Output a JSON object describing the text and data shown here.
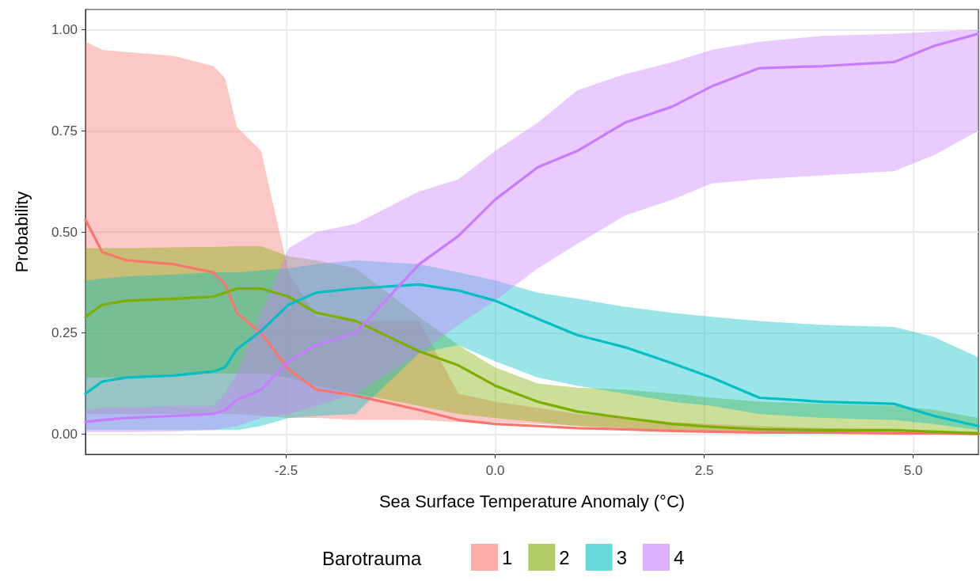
{
  "chart_data": {
    "type": "line",
    "xlabel": "Sea Surface Temperature Anomaly (°C)",
    "ylabel": "Probability",
    "legend_title": "Barotrauma",
    "legend": "bottom",
    "grid": true,
    "line_style": "solid",
    "marker": "none",
    "xlim": [
      -4.9,
      5.78
    ],
    "ylim": [
      -0.05,
      1.05
    ],
    "xticks": [
      -2.5,
      {
        "value": 0,
        "label": "0.0"
      },
      2.5,
      {
        "value": 5,
        "label": "5.0"
      }
    ],
    "yticks": [
      {
        "value": 0,
        "label": "0.00"
      },
      {
        "value": 0.25,
        "label": "0.25"
      },
      {
        "value": 0.5,
        "label": "0.50"
      },
      {
        "value": 0.75,
        "label": "0.75"
      },
      {
        "value": 1,
        "label": "1.00"
      }
    ],
    "x": [
      -4.9,
      -4.7,
      -4.41,
      -3.84,
      -3.37,
      -3.23,
      -3.09,
      -2.8,
      -2.47,
      -2.14,
      -1.67,
      -0.91,
      -0.44,
      0,
      0.51,
      0.98,
      1.55,
      2.12,
      2.59,
      3.16,
      3.92,
      4.77,
      5.25,
      5.78
    ],
    "series": [
      {
        "name": "1",
        "color": "#f8766d",
        "values": [
          0.53,
          0.45,
          0.43,
          0.42,
          0.4,
          0.37,
          0.3,
          0.25,
          0.16,
          0.11,
          0.095,
          0.06,
          0.035,
          0.025,
          0.02,
          0.015,
          0.012,
          0.008,
          0.006,
          0.004,
          0.004,
          0.002,
          0.002,
          0
        ],
        "upper": [
          0.97,
          0.95,
          0.945,
          0.935,
          0.91,
          0.88,
          0.76,
          0.7,
          0.4,
          0.29,
          0.28,
          0.28,
          0.1,
          0.08,
          0.065,
          0.05,
          0.04,
          0.03,
          0.025,
          0.02,
          0.015,
          0.01,
          0.008,
          0.005
        ],
        "lower": [
          0.05,
          0.05,
          0.05,
          0.05,
          0.05,
          0.05,
          0.05,
          0.045,
          0.04,
          0.04,
          0.035,
          0.035,
          0.03,
          0.03,
          0.025,
          0.02,
          0.015,
          0.01,
          0.008,
          0.005,
          0.003,
          0.002,
          0.001,
          0
        ]
      },
      {
        "name": "2",
        "color": "#7cae00",
        "values": [
          0.29,
          0.32,
          0.33,
          0.335,
          0.34,
          0.35,
          0.36,
          0.36,
          0.34,
          0.3,
          0.28,
          0.205,
          0.17,
          0.12,
          0.08,
          0.056,
          0.04,
          0.025,
          0.018,
          0.012,
          0.01,
          0.01,
          0.006,
          0.002
        ],
        "upper": [
          0.46,
          0.46,
          0.46,
          0.462,
          0.463,
          0.464,
          0.465,
          0.465,
          0.44,
          0.43,
          0.41,
          0.29,
          0.22,
          0.165,
          0.125,
          0.115,
          0.11,
          0.1,
          0.09,
          0.08,
          0.075,
          0.07,
          0.06,
          0.04
        ],
        "lower": [
          0.14,
          0.14,
          0.14,
          0.145,
          0.15,
          0.15,
          0.15,
          0.15,
          0.14,
          0.12,
          0.1,
          0.07,
          0.05,
          0.04,
          0.03,
          0.02,
          0.015,
          0.01,
          0.008,
          0.005,
          0.004,
          0.003,
          0.002,
          0
        ]
      },
      {
        "name": "3",
        "color": "#00bfc4",
        "values": [
          0.1,
          0.13,
          0.14,
          0.145,
          0.155,
          0.165,
          0.21,
          0.255,
          0.32,
          0.35,
          0.36,
          0.37,
          0.355,
          0.33,
          0.285,
          0.245,
          0.215,
          0.175,
          0.14,
          0.09,
          0.08,
          0.075,
          0.045,
          0.02
        ],
        "upper": [
          0.38,
          0.385,
          0.39,
          0.395,
          0.4,
          0.4,
          0.4,
          0.405,
          0.41,
          0.42,
          0.43,
          0.42,
          0.4,
          0.38,
          0.35,
          0.335,
          0.315,
          0.3,
          0.29,
          0.28,
          0.27,
          0.265,
          0.24,
          0.19
        ],
        "lower": [
          0.01,
          0.01,
          0.01,
          0.01,
          0.01,
          0.01,
          0.01,
          0.02,
          0.04,
          0.045,
          0.05,
          0.2,
          0.22,
          0.18,
          0.14,
          0.12,
          0.1,
          0.08,
          0.07,
          0.05,
          0.04,
          0.035,
          0.025,
          0.01
        ]
      },
      {
        "name": "4",
        "color": "#c77cff",
        "values": [
          0.03,
          0.035,
          0.04,
          0.045,
          0.05,
          0.06,
          0.085,
          0.11,
          0.18,
          0.22,
          0.25,
          0.42,
          0.49,
          0.58,
          0.66,
          0.7,
          0.77,
          0.81,
          0.86,
          0.905,
          0.91,
          0.92,
          0.96,
          0.99
        ],
        "upper": [
          0.06,
          0.065,
          0.065,
          0.07,
          0.07,
          0.1,
          0.15,
          0.3,
          0.46,
          0.5,
          0.52,
          0.6,
          0.63,
          0.7,
          0.77,
          0.85,
          0.89,
          0.92,
          0.95,
          0.97,
          0.985,
          0.99,
          0.995,
          1.0
        ],
        "lower": [
          0.005,
          0.005,
          0.005,
          0.007,
          0.01,
          0.015,
          0.02,
          0.04,
          0.05,
          0.07,
          0.1,
          0.2,
          0.27,
          0.33,
          0.41,
          0.47,
          0.54,
          0.58,
          0.62,
          0.63,
          0.64,
          0.65,
          0.69,
          0.75
        ]
      }
    ]
  }
}
